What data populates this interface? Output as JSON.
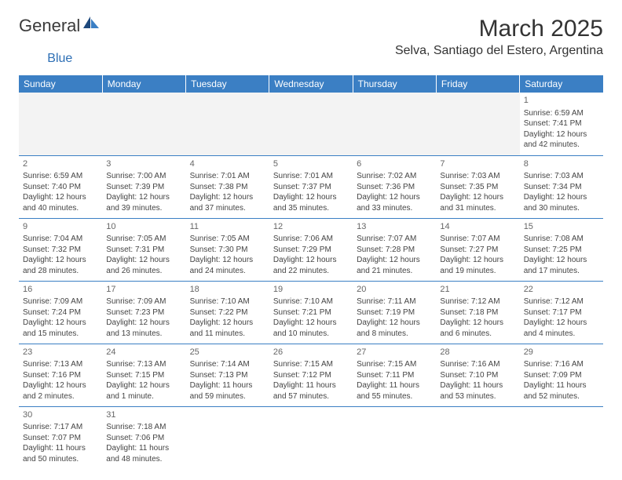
{
  "logo": {
    "main": "General",
    "sub": "Blue"
  },
  "title": "March 2025",
  "location": "Selva, Santiago del Estero, Argentina",
  "weekdays": [
    "Sunday",
    "Monday",
    "Tuesday",
    "Wednesday",
    "Thursday",
    "Friday",
    "Saturday"
  ],
  "colors": {
    "header_bg": "#3b7fc4",
    "header_text": "#ffffff",
    "border": "#3b7fc4",
    "logo_sub": "#2d6fb5",
    "text": "#333333",
    "pad_bg": "#f3f3f3"
  },
  "weeks": [
    [
      {
        "pad": true
      },
      {
        "pad": true
      },
      {
        "pad": true
      },
      {
        "pad": true
      },
      {
        "pad": true
      },
      {
        "pad": true
      },
      {
        "day": "1",
        "sunrise": "Sunrise: 6:59 AM",
        "sunset": "Sunset: 7:41 PM",
        "daylight": "Daylight: 12 hours and 42 minutes."
      }
    ],
    [
      {
        "day": "2",
        "sunrise": "Sunrise: 6:59 AM",
        "sunset": "Sunset: 7:40 PM",
        "daylight": "Daylight: 12 hours and 40 minutes."
      },
      {
        "day": "3",
        "sunrise": "Sunrise: 7:00 AM",
        "sunset": "Sunset: 7:39 PM",
        "daylight": "Daylight: 12 hours and 39 minutes."
      },
      {
        "day": "4",
        "sunrise": "Sunrise: 7:01 AM",
        "sunset": "Sunset: 7:38 PM",
        "daylight": "Daylight: 12 hours and 37 minutes."
      },
      {
        "day": "5",
        "sunrise": "Sunrise: 7:01 AM",
        "sunset": "Sunset: 7:37 PM",
        "daylight": "Daylight: 12 hours and 35 minutes."
      },
      {
        "day": "6",
        "sunrise": "Sunrise: 7:02 AM",
        "sunset": "Sunset: 7:36 PM",
        "daylight": "Daylight: 12 hours and 33 minutes."
      },
      {
        "day": "7",
        "sunrise": "Sunrise: 7:03 AM",
        "sunset": "Sunset: 7:35 PM",
        "daylight": "Daylight: 12 hours and 31 minutes."
      },
      {
        "day": "8",
        "sunrise": "Sunrise: 7:03 AM",
        "sunset": "Sunset: 7:34 PM",
        "daylight": "Daylight: 12 hours and 30 minutes."
      }
    ],
    [
      {
        "day": "9",
        "sunrise": "Sunrise: 7:04 AM",
        "sunset": "Sunset: 7:32 PM",
        "daylight": "Daylight: 12 hours and 28 minutes."
      },
      {
        "day": "10",
        "sunrise": "Sunrise: 7:05 AM",
        "sunset": "Sunset: 7:31 PM",
        "daylight": "Daylight: 12 hours and 26 minutes."
      },
      {
        "day": "11",
        "sunrise": "Sunrise: 7:05 AM",
        "sunset": "Sunset: 7:30 PM",
        "daylight": "Daylight: 12 hours and 24 minutes."
      },
      {
        "day": "12",
        "sunrise": "Sunrise: 7:06 AM",
        "sunset": "Sunset: 7:29 PM",
        "daylight": "Daylight: 12 hours and 22 minutes."
      },
      {
        "day": "13",
        "sunrise": "Sunrise: 7:07 AM",
        "sunset": "Sunset: 7:28 PM",
        "daylight": "Daylight: 12 hours and 21 minutes."
      },
      {
        "day": "14",
        "sunrise": "Sunrise: 7:07 AM",
        "sunset": "Sunset: 7:27 PM",
        "daylight": "Daylight: 12 hours and 19 minutes."
      },
      {
        "day": "15",
        "sunrise": "Sunrise: 7:08 AM",
        "sunset": "Sunset: 7:25 PM",
        "daylight": "Daylight: 12 hours and 17 minutes."
      }
    ],
    [
      {
        "day": "16",
        "sunrise": "Sunrise: 7:09 AM",
        "sunset": "Sunset: 7:24 PM",
        "daylight": "Daylight: 12 hours and 15 minutes."
      },
      {
        "day": "17",
        "sunrise": "Sunrise: 7:09 AM",
        "sunset": "Sunset: 7:23 PM",
        "daylight": "Daylight: 12 hours and 13 minutes."
      },
      {
        "day": "18",
        "sunrise": "Sunrise: 7:10 AM",
        "sunset": "Sunset: 7:22 PM",
        "daylight": "Daylight: 12 hours and 11 minutes."
      },
      {
        "day": "19",
        "sunrise": "Sunrise: 7:10 AM",
        "sunset": "Sunset: 7:21 PM",
        "daylight": "Daylight: 12 hours and 10 minutes."
      },
      {
        "day": "20",
        "sunrise": "Sunrise: 7:11 AM",
        "sunset": "Sunset: 7:19 PM",
        "daylight": "Daylight: 12 hours and 8 minutes."
      },
      {
        "day": "21",
        "sunrise": "Sunrise: 7:12 AM",
        "sunset": "Sunset: 7:18 PM",
        "daylight": "Daylight: 12 hours and 6 minutes."
      },
      {
        "day": "22",
        "sunrise": "Sunrise: 7:12 AM",
        "sunset": "Sunset: 7:17 PM",
        "daylight": "Daylight: 12 hours and 4 minutes."
      }
    ],
    [
      {
        "day": "23",
        "sunrise": "Sunrise: 7:13 AM",
        "sunset": "Sunset: 7:16 PM",
        "daylight": "Daylight: 12 hours and 2 minutes."
      },
      {
        "day": "24",
        "sunrise": "Sunrise: 7:13 AM",
        "sunset": "Sunset: 7:15 PM",
        "daylight": "Daylight: 12 hours and 1 minute."
      },
      {
        "day": "25",
        "sunrise": "Sunrise: 7:14 AM",
        "sunset": "Sunset: 7:13 PM",
        "daylight": "Daylight: 11 hours and 59 minutes."
      },
      {
        "day": "26",
        "sunrise": "Sunrise: 7:15 AM",
        "sunset": "Sunset: 7:12 PM",
        "daylight": "Daylight: 11 hours and 57 minutes."
      },
      {
        "day": "27",
        "sunrise": "Sunrise: 7:15 AM",
        "sunset": "Sunset: 7:11 PM",
        "daylight": "Daylight: 11 hours and 55 minutes."
      },
      {
        "day": "28",
        "sunrise": "Sunrise: 7:16 AM",
        "sunset": "Sunset: 7:10 PM",
        "daylight": "Daylight: 11 hours and 53 minutes."
      },
      {
        "day": "29",
        "sunrise": "Sunrise: 7:16 AM",
        "sunset": "Sunset: 7:09 PM",
        "daylight": "Daylight: 11 hours and 52 minutes."
      }
    ],
    [
      {
        "day": "30",
        "sunrise": "Sunrise: 7:17 AM",
        "sunset": "Sunset: 7:07 PM",
        "daylight": "Daylight: 11 hours and 50 minutes."
      },
      {
        "day": "31",
        "sunrise": "Sunrise: 7:18 AM",
        "sunset": "Sunset: 7:06 PM",
        "daylight": "Daylight: 11 hours and 48 minutes."
      },
      {
        "pad": true,
        "blank": true
      },
      {
        "pad": true,
        "blank": true
      },
      {
        "pad": true,
        "blank": true
      },
      {
        "pad": true,
        "blank": true
      },
      {
        "pad": true,
        "blank": true
      }
    ]
  ]
}
